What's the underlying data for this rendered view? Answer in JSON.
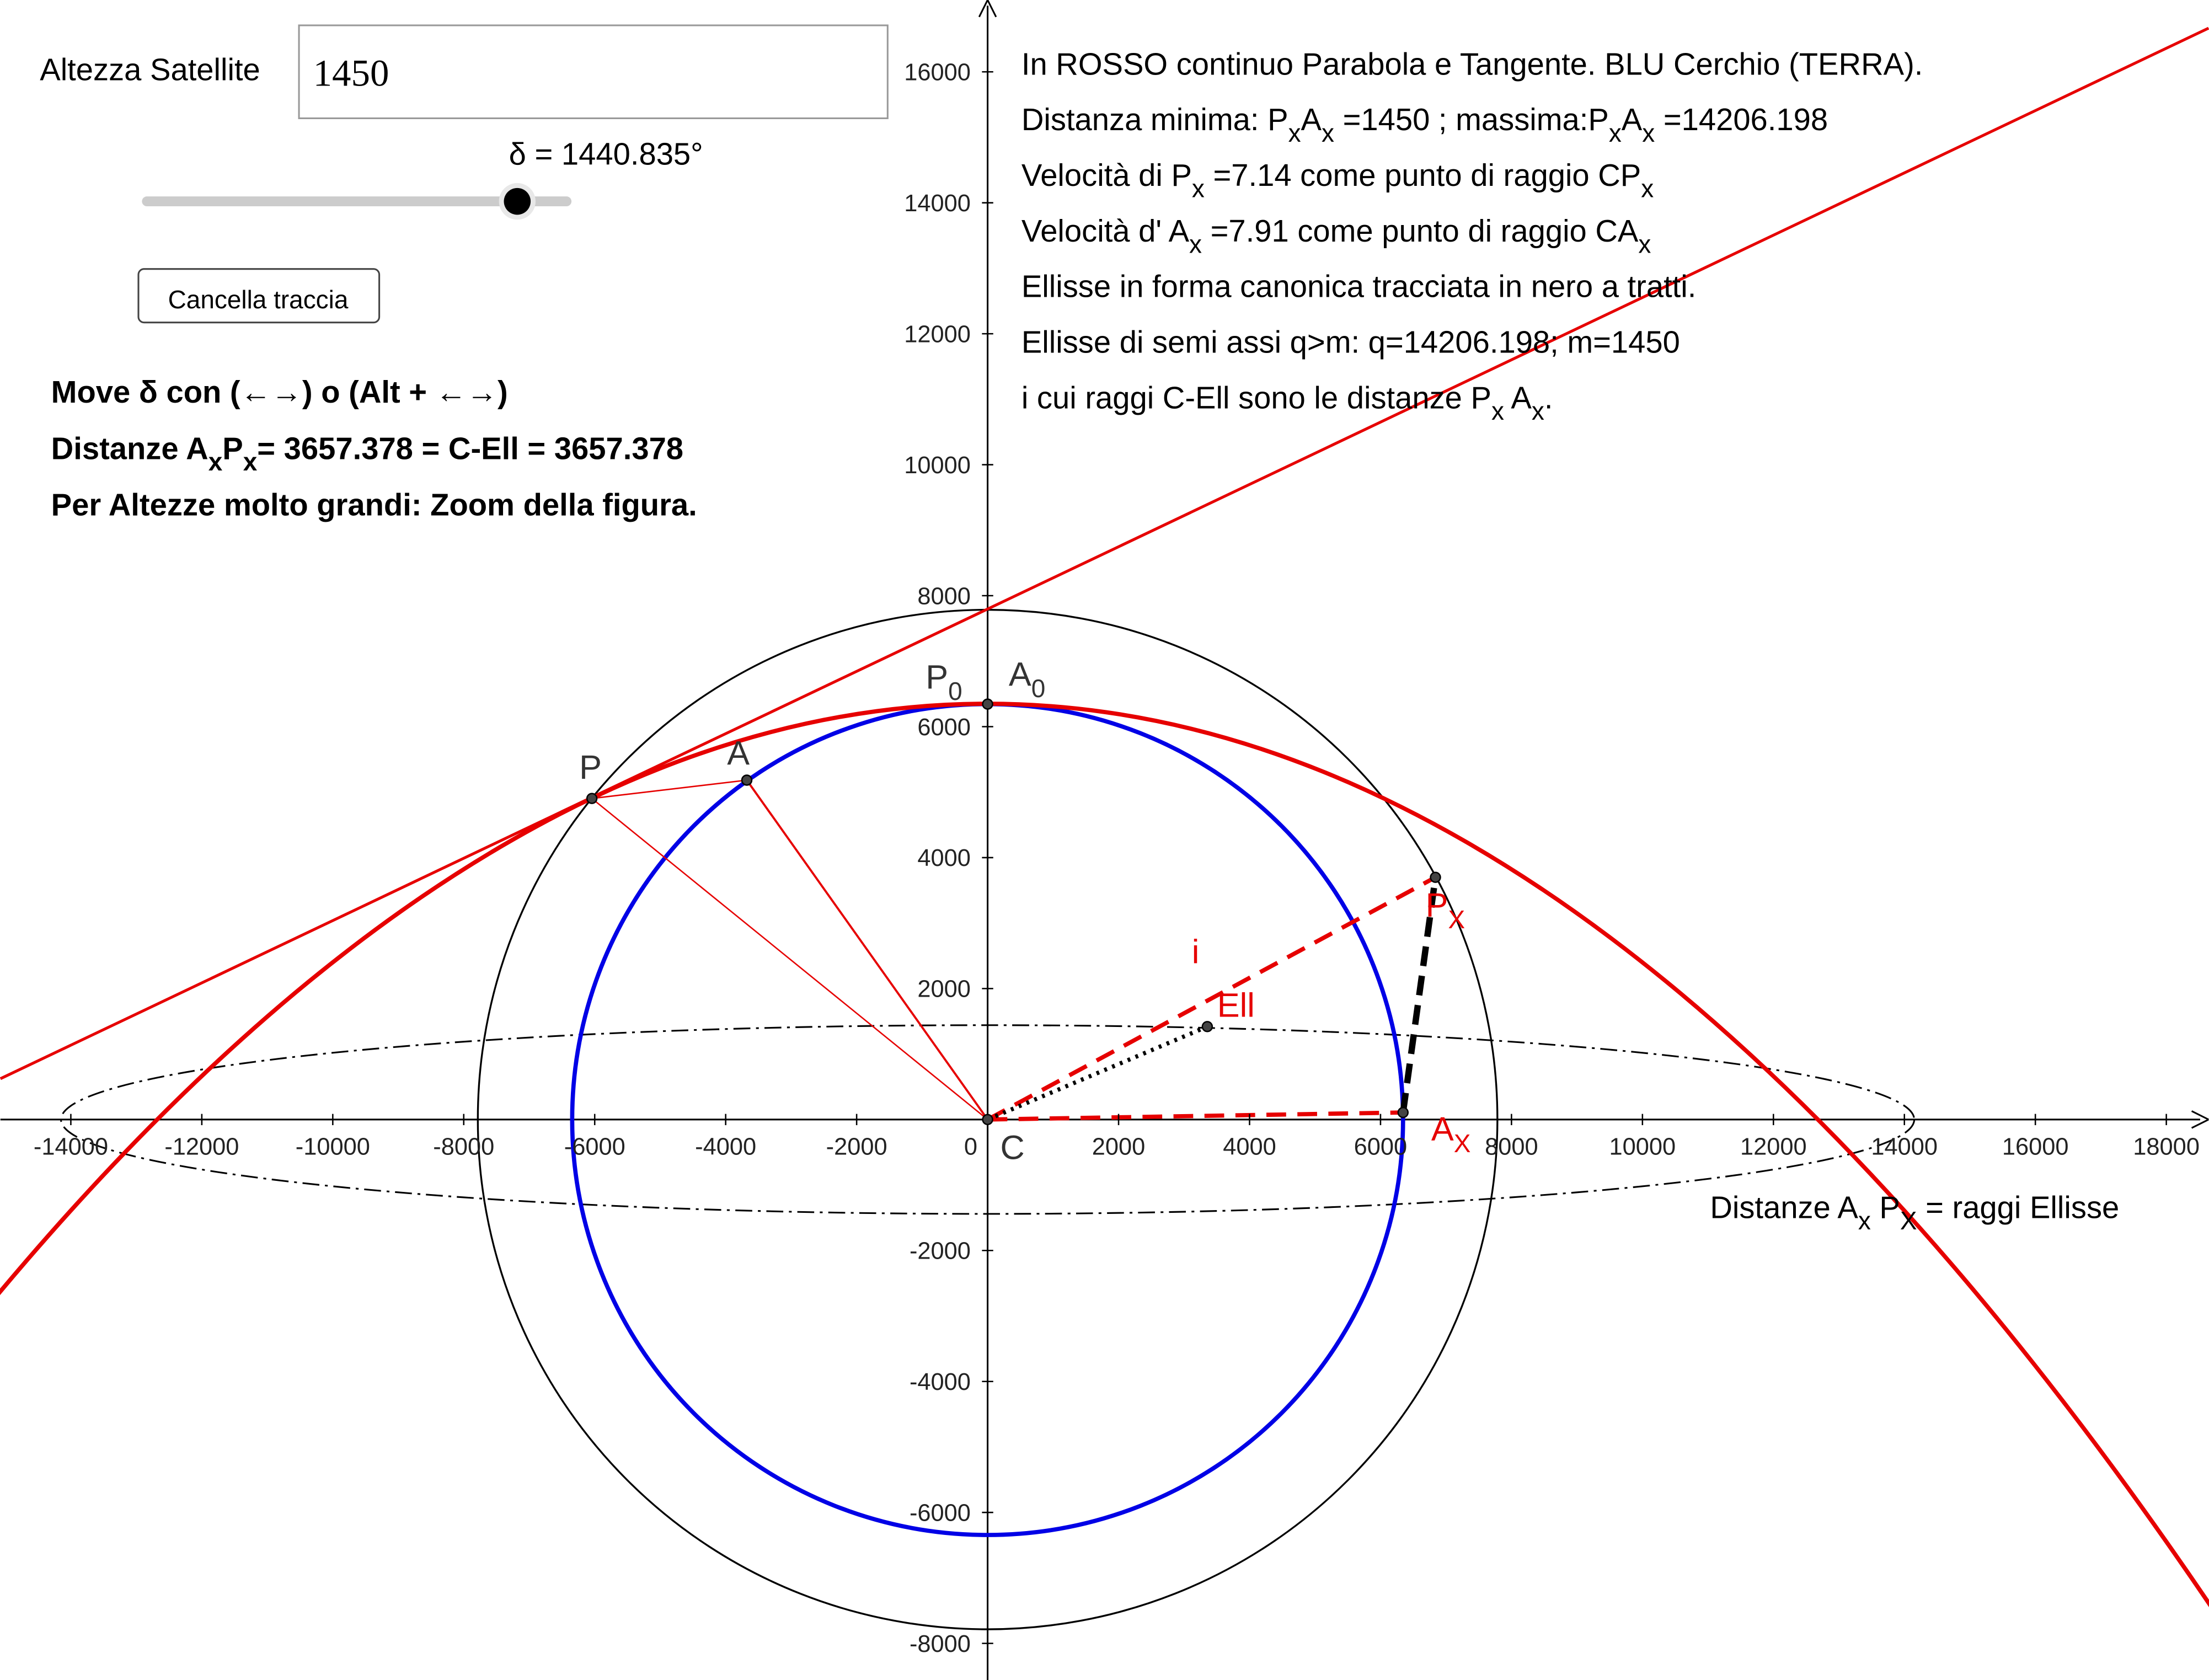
{
  "input": {
    "label": "Altezza Satellite",
    "value": "1450"
  },
  "slider": {
    "label": "δ = 1440.835°"
  },
  "button": "Cancella traccia",
  "notes_left": [
    [
      {
        "t": "Move δ con (←→) o (Alt + ←→)"
      }
    ],
    [
      {
        "t": "Distanze A"
      },
      {
        "sub": "x"
      },
      {
        "t": "P"
      },
      {
        "sub": "x"
      },
      {
        "t": "= 3657.378  =  C-Ell = 3657.378"
      }
    ],
    [
      {
        "t": "Per Altezze molto grandi: Zoom della figura."
      }
    ]
  ],
  "notes_right": [
    [
      {
        "t": "In ROSSO continuo Parabola e Tangente. BLU Cerchio (TERRA)."
      }
    ],
    [
      {
        "t": "Distanza minima: P"
      },
      {
        "sub": "x"
      },
      {
        "t": "A"
      },
      {
        "sub": "x"
      },
      {
        "t": " =1450 ;   massima:P"
      },
      {
        "sub": "x"
      },
      {
        "t": "A"
      },
      {
        "sub": "x"
      },
      {
        "t": " =14206.198"
      }
    ],
    [
      {
        "t": "Velocità di P"
      },
      {
        "sub": "x"
      },
      {
        "t": " =7.14  come punto di raggio CP"
      },
      {
        "sub": "x"
      }
    ],
    [
      {
        "t": "Velocità d' A"
      },
      {
        "sub": "x"
      },
      {
        "t": " =7.91  come punto di raggio CA"
      },
      {
        "sub": "x"
      }
    ],
    [
      {
        "t": "Ellisse in forma canonica tracciata in nero a tratti."
      }
    ],
    [
      {
        "t": "Ellisse di semi assi q>m: q=14206.198; m=1450"
      }
    ],
    [
      {
        "t": "i cui raggi C-Ell sono le distanze P"
      },
      {
        "sub": "x"
      },
      {
        "t": " A"
      },
      {
        "sub": "x"
      },
      {
        "t": "."
      }
    ]
  ],
  "point_labels": [
    [
      {
        "t": "P"
      }
    ],
    [
      {
        "t": "A"
      }
    ],
    [
      {
        "t": "P"
      },
      {
        "sub": "0"
      }
    ],
    [
      {
        "t": "A"
      },
      {
        "sub": "0"
      }
    ],
    [
      {
        "t": "C"
      }
    ],
    [
      {
        "t": "Ell"
      }
    ],
    [
      {
        "t": "i"
      }
    ],
    [
      {
        "t": "P"
      },
      {
        "sub": "X"
      }
    ],
    [
      {
        "t": "A"
      },
      {
        "sub": "X"
      }
    ],
    [
      {
        "t": "Distanze A"
      },
      {
        "sub": "x"
      },
      {
        "t": " P"
      },
      {
        "sub": "X"
      },
      {
        "t": " = raggi Ellisse"
      }
    ]
  ],
  "graph": {
    "xticks": [
      -14000,
      -12000,
      -10000,
      -8000,
      -6000,
      -4000,
      -2000,
      0,
      2000,
      4000,
      6000,
      8000,
      10000,
      12000,
      14000,
      16000,
      18000
    ],
    "yticks": [
      -8000,
      -6000,
      -4000,
      -2000,
      2000,
      4000,
      6000,
      8000,
      10000,
      12000,
      14000,
      16000
    ]
  }
}
